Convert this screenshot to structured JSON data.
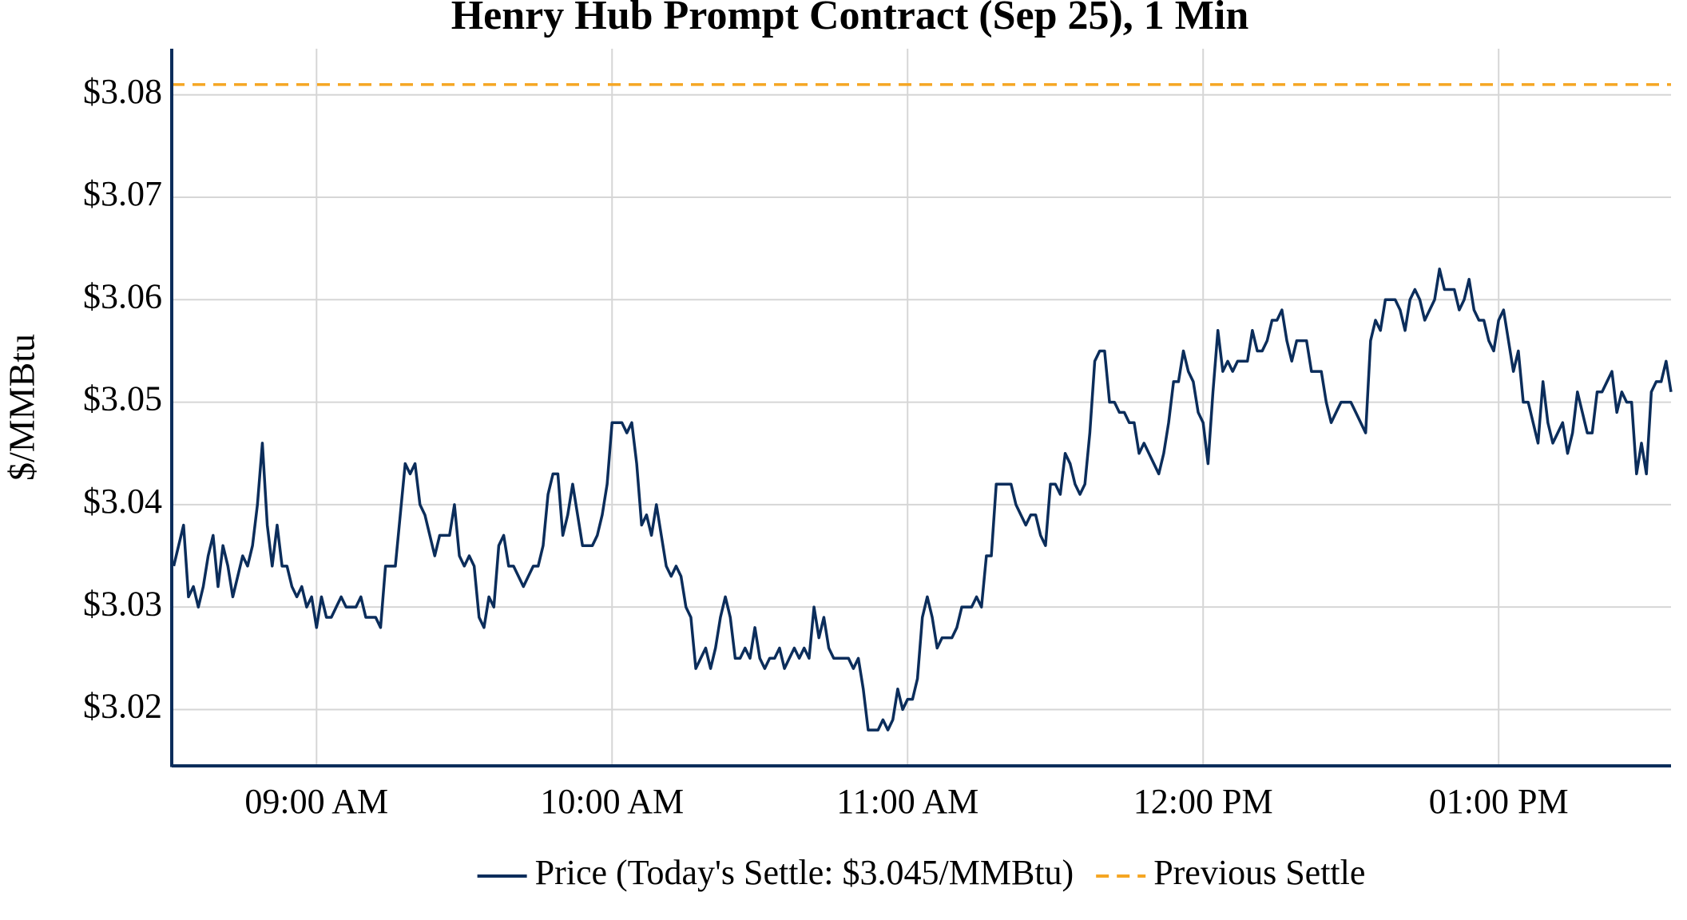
{
  "chart_data": {
    "type": "line",
    "title": "Henry Hub Prompt Contract (Sep 25), 1 Min",
    "y_label": "$/MMBtu",
    "x": [
      511,
      512,
      513,
      514,
      515,
      516,
      517,
      518,
      519,
      520,
      521,
      522,
      523,
      524,
      525,
      526,
      527,
      528,
      529,
      530,
      531,
      532,
      533,
      534,
      535,
      536,
      537,
      538,
      539,
      540,
      541,
      542,
      543,
      544,
      545,
      546,
      547,
      548,
      549,
      550,
      551,
      552,
      553,
      554,
      555,
      556,
      557,
      558,
      559,
      560,
      561,
      562,
      563,
      564,
      565,
      566,
      567,
      568,
      569,
      570,
      571,
      572,
      573,
      574,
      575,
      576,
      577,
      578,
      579,
      580,
      581,
      582,
      583,
      584,
      585,
      586,
      587,
      588,
      589,
      590,
      591,
      592,
      593,
      594,
      595,
      596,
      597,
      598,
      599,
      600,
      601,
      602,
      603,
      604,
      605,
      606,
      607,
      608,
      609,
      610,
      611,
      612,
      613,
      614,
      615,
      616,
      617,
      618,
      619,
      620,
      621,
      622,
      623,
      624,
      625,
      626,
      627,
      628,
      629,
      630,
      631,
      632,
      633,
      634,
      635,
      636,
      637,
      638,
      639,
      640,
      641,
      642,
      643,
      644,
      645,
      646,
      647,
      648,
      649,
      650,
      651,
      652,
      653,
      654,
      655,
      656,
      657,
      658,
      659,
      660,
      661,
      662,
      663,
      664,
      665,
      666,
      667,
      668,
      669,
      670,
      671,
      672,
      673,
      674,
      675,
      676,
      677,
      678,
      679,
      680,
      681,
      682,
      683,
      684,
      685,
      686,
      687,
      688,
      689,
      690,
      691,
      692,
      693,
      694,
      695,
      696,
      697,
      698,
      699,
      700,
      701,
      702,
      703,
      704,
      705,
      706,
      707,
      708,
      709,
      710,
      711,
      712,
      713,
      714,
      715,
      716,
      717,
      718,
      719,
      720,
      721,
      722,
      723,
      724,
      725,
      726,
      727,
      728,
      729,
      730,
      731,
      732,
      733,
      734,
      735,
      736,
      737,
      738,
      739,
      740,
      741,
      742,
      743,
      744,
      745,
      746,
      747,
      748,
      749,
      750,
      751,
      752,
      753,
      754,
      755,
      756,
      757,
      758,
      759,
      760,
      761,
      762,
      763,
      764,
      765,
      766,
      767,
      768,
      769,
      770,
      771,
      772,
      773,
      774,
      775,
      776,
      777,
      778,
      779,
      780,
      781,
      782,
      783,
      784,
      785,
      786,
      787,
      788,
      789,
      790,
      791,
      792,
      793,
      794,
      795,
      796,
      797,
      798,
      799,
      800,
      801,
      802,
      803,
      804,
      805,
      806,
      807,
      808,
      809,
      810,
      811,
      812,
      813,
      814,
      815
    ],
    "series": [
      {
        "name": "Price (Today's Settle: $3.045/MMBtu)",
        "color": "#0b2d5b",
        "values": [
          3.034,
          3.036,
          3.038,
          3.031,
          3.032,
          3.03,
          3.032,
          3.035,
          3.037,
          3.032,
          3.036,
          3.034,
          3.031,
          3.033,
          3.035,
          3.034,
          3.036,
          3.04,
          3.046,
          3.038,
          3.034,
          3.038,
          3.034,
          3.034,
          3.032,
          3.031,
          3.032,
          3.03,
          3.031,
          3.028,
          3.031,
          3.029,
          3.029,
          3.03,
          3.031,
          3.03,
          3.03,
          3.03,
          3.031,
          3.029,
          3.029,
          3.029,
          3.028,
          3.034,
          3.034,
          3.034,
          3.039,
          3.044,
          3.043,
          3.044,
          3.04,
          3.039,
          3.037,
          3.035,
          3.037,
          3.037,
          3.037,
          3.04,
          3.035,
          3.034,
          3.035,
          3.034,
          3.029,
          3.028,
          3.031,
          3.03,
          3.036,
          3.037,
          3.034,
          3.034,
          3.033,
          3.032,
          3.033,
          3.034,
          3.034,
          3.036,
          3.041,
          3.043,
          3.043,
          3.037,
          3.039,
          3.042,
          3.039,
          3.036,
          3.036,
          3.036,
          3.037,
          3.039,
          3.042,
          3.048,
          3.048,
          3.048,
          3.047,
          3.048,
          3.044,
          3.038,
          3.039,
          3.037,
          3.04,
          3.037,
          3.034,
          3.033,
          3.034,
          3.033,
          3.03,
          3.029,
          3.024,
          3.025,
          3.026,
          3.024,
          3.026,
          3.029,
          3.031,
          3.029,
          3.025,
          3.025,
          3.026,
          3.025,
          3.028,
          3.025,
          3.024,
          3.025,
          3.025,
          3.026,
          3.024,
          3.025,
          3.026,
          3.025,
          3.026,
          3.025,
          3.03,
          3.027,
          3.029,
          3.026,
          3.025,
          3.025,
          3.025,
          3.025,
          3.024,
          3.025,
          3.022,
          3.018,
          3.018,
          3.018,
          3.019,
          3.018,
          3.019,
          3.022,
          3.02,
          3.021,
          3.021,
          3.023,
          3.029,
          3.031,
          3.029,
          3.026,
          3.027,
          3.027,
          3.027,
          3.028,
          3.03,
          3.03,
          3.03,
          3.031,
          3.03,
          3.035,
          3.035,
          3.042,
          3.042,
          3.042,
          3.042,
          3.04,
          3.039,
          3.038,
          3.039,
          3.039,
          3.037,
          3.036,
          3.042,
          3.042,
          3.041,
          3.045,
          3.044,
          3.042,
          3.041,
          3.042,
          3.047,
          3.054,
          3.055,
          3.055,
          3.05,
          3.05,
          3.049,
          3.049,
          3.048,
          3.048,
          3.045,
          3.046,
          3.045,
          3.044,
          3.043,
          3.045,
          3.048,
          3.052,
          3.052,
          3.055,
          3.053,
          3.052,
          3.049,
          3.048,
          3.044,
          3.051,
          3.057,
          3.053,
          3.054,
          3.053,
          3.054,
          3.054,
          3.054,
          3.057,
          3.055,
          3.055,
          3.056,
          3.058,
          3.058,
          3.059,
          3.056,
          3.054,
          3.056,
          3.056,
          3.056,
          3.053,
          3.053,
          3.053,
          3.05,
          3.048,
          3.049,
          3.05,
          3.05,
          3.05,
          3.049,
          3.048,
          3.047,
          3.056,
          3.058,
          3.057,
          3.06,
          3.06,
          3.06,
          3.059,
          3.057,
          3.06,
          3.061,
          3.06,
          3.058,
          3.059,
          3.06,
          3.063,
          3.061,
          3.061,
          3.061,
          3.059,
          3.06,
          3.062,
          3.059,
          3.058,
          3.058,
          3.056,
          3.055,
          3.058,
          3.059,
          3.056,
          3.053,
          3.055,
          3.05,
          3.05,
          3.048,
          3.046,
          3.052,
          3.048,
          3.046,
          3.047,
          3.048,
          3.045,
          3.047,
          3.051,
          3.049,
          3.047,
          3.047,
          3.051,
          3.051,
          3.052,
          3.053,
          3.049,
          3.051,
          3.05,
          3.05,
          3.043,
          3.046,
          3.043,
          3.051,
          3.052,
          3.052,
          3.054,
          3.051
        ]
      }
    ],
    "hlines": [
      {
        "name": "Previous Settle",
        "value": 3.081,
        "color": "#f5a623",
        "style": "dashed"
      }
    ],
    "xlim": [
      510.6,
      815
    ],
    "xticks": [
      {
        "value": 540,
        "label": "09:00 AM"
      },
      {
        "value": 600,
        "label": "10:00 AM"
      },
      {
        "value": 660,
        "label": "11:00 AM"
      },
      {
        "value": 720,
        "label": "12:00 PM"
      },
      {
        "value": 780,
        "label": "01:00 PM"
      }
    ],
    "ylim": [
      3.0145,
      3.0845
    ],
    "yticks": [
      {
        "value": 3.02,
        "label": "$3.02"
      },
      {
        "value": 3.03,
        "label": "$3.03"
      },
      {
        "value": 3.04,
        "label": "$3.04"
      },
      {
        "value": 3.05,
        "label": "$3.05"
      },
      {
        "value": 3.06,
        "label": "$3.06"
      },
      {
        "value": 3.07,
        "label": "$3.07"
      },
      {
        "value": 3.08,
        "label": "$3.08"
      }
    ],
    "grid": true,
    "legend": "bottom"
  }
}
